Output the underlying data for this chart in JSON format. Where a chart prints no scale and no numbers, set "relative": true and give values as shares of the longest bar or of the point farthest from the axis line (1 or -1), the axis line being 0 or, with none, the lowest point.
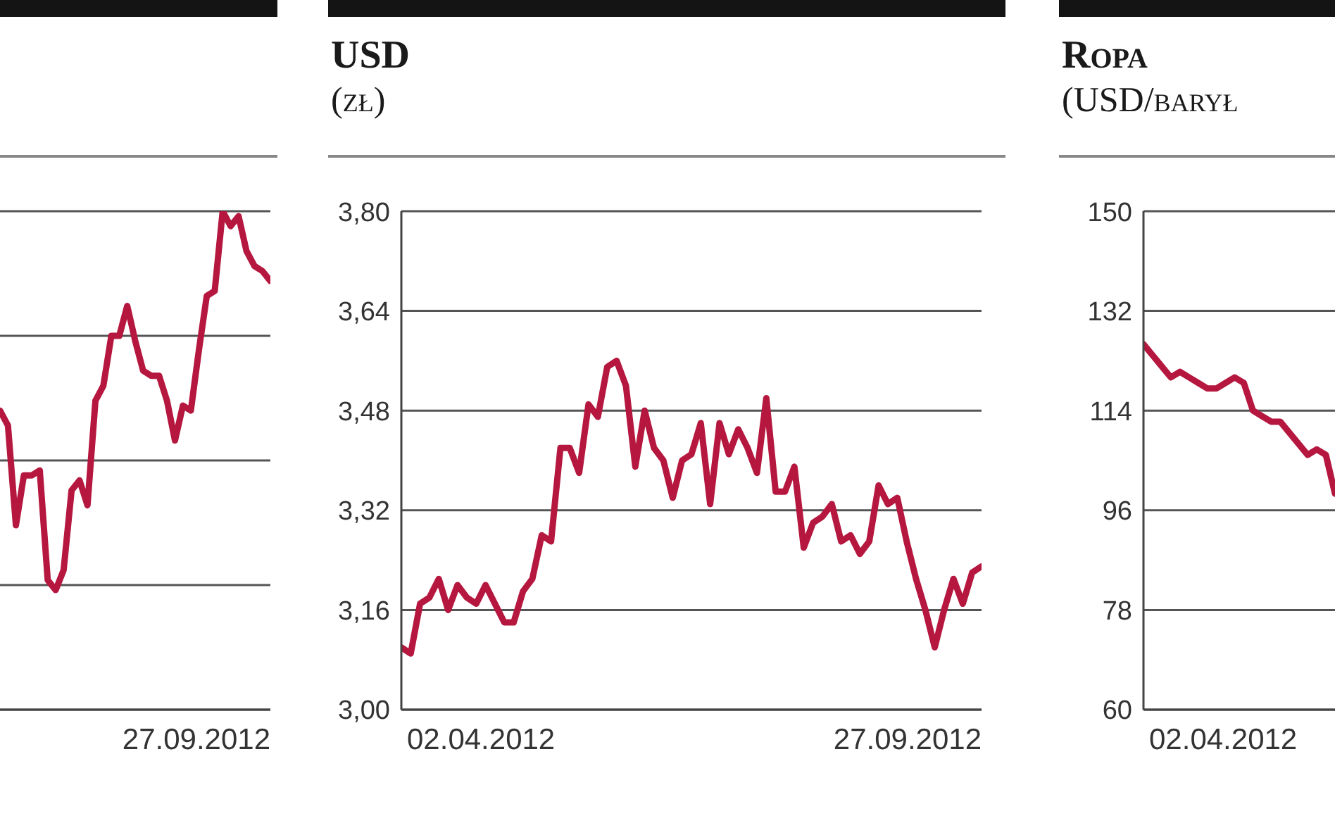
{
  "chart_data": [
    {
      "type": "line",
      "relative": true,
      "grid": "y",
      "color": "#b5173f",
      "categories": [
        null,
        null,
        null,
        null,
        null,
        null,
        null,
        null,
        null,
        null,
        null,
        null,
        null,
        null,
        null,
        null,
        null,
        null,
        null,
        null,
        null,
        null,
        null,
        null,
        null,
        null,
        null,
        null,
        null,
        null,
        null,
        null,
        null,
        null,
        null
      ],
      "values": [
        0.6,
        0.57,
        0.37,
        0.47,
        0.47,
        0.48,
        0.26,
        0.24,
        0.28,
        0.44,
        0.46,
        0.41,
        0.62,
        0.65,
        0.75,
        0.75,
        0.81,
        0.74,
        0.68,
        0.67,
        0.67,
        0.62,
        0.54,
        0.61,
        0.6,
        0.72,
        0.83,
        0.84,
        1,
        0.97,
        0.99,
        0.92,
        0.89,
        0.88,
        0.86
      ],
      "annotations": [
        "27.09.2012"
      ]
    },
    {
      "type": "line",
      "title": "USD",
      "subtitle": "(zł)",
      "grid": "y",
      "color": "#b5173f",
      "categories": [
        null,
        null,
        null,
        null,
        null,
        null,
        null,
        null,
        null,
        null,
        null,
        null,
        null,
        null,
        null,
        null,
        null,
        null,
        null,
        null,
        null,
        null,
        null,
        null,
        null,
        null,
        null,
        null,
        null,
        null,
        null,
        null,
        null,
        null,
        null,
        null,
        null,
        null,
        null,
        null,
        null,
        null,
        null,
        null,
        null,
        null,
        null,
        null,
        null,
        null,
        null,
        null,
        null,
        null,
        null,
        null,
        null,
        null,
        null,
        null,
        null,
        null,
        null
      ],
      "values": [
        3.1,
        3.09,
        3.17,
        3.18,
        3.21,
        3.16,
        3.2,
        3.18,
        3.17,
        3.2,
        3.17,
        3.14,
        3.14,
        3.19,
        3.21,
        3.28,
        3.27,
        3.42,
        3.42,
        3.38,
        3.49,
        3.47,
        3.55,
        3.56,
        3.52,
        3.39,
        3.48,
        3.42,
        3.4,
        3.34,
        3.4,
        3.41,
        3.46,
        3.33,
        3.46,
        3.41,
        3.45,
        3.42,
        3.38,
        3.5,
        3.35,
        3.35,
        3.39,
        3.26,
        3.3,
        3.31,
        3.33,
        3.27,
        3.28,
        3.25,
        3.27,
        3.36,
        3.33,
        3.34,
        3.27,
        3.21,
        3.16,
        3.1,
        3.16,
        3.21,
        3.17,
        3.22,
        3.23
      ],
      "ylim": [
        3.0,
        3.8
      ],
      "yticks": [
        {
          "value": 3.0,
          "label": "3,00"
        },
        {
          "value": 3.16,
          "label": "3,16"
        },
        {
          "value": 3.32,
          "label": "3,32"
        },
        {
          "value": 3.48,
          "label": "3,48"
        },
        {
          "value": 3.64,
          "label": "3,64"
        },
        {
          "value": 3.8,
          "label": "3,80"
        }
      ],
      "annotations": [
        "02.04.2012",
        "27.09.2012"
      ]
    },
    {
      "type": "line",
      "title": "Ropa",
      "subtitle": "(USD/barył",
      "grid": "y",
      "color": "#b5173f",
      "categories": [
        null,
        null,
        null,
        null,
        null,
        null,
        null,
        null,
        null,
        null,
        null,
        null,
        null,
        null,
        null,
        null,
        null,
        null,
        null,
        null,
        null,
        null
      ],
      "values": [
        126,
        124,
        122,
        120,
        121,
        120,
        119,
        118,
        118,
        119,
        120,
        119,
        114,
        113,
        112,
        112,
        110,
        108,
        106,
        107,
        106,
        99
      ],
      "ylim": [
        60,
        150
      ],
      "yticks": [
        60,
        78,
        96,
        114,
        132,
        150
      ],
      "annotations": [
        "02.04.2012"
      ]
    }
  ]
}
